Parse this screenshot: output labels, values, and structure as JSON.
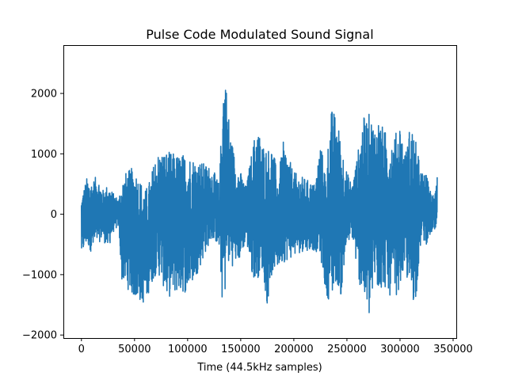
{
  "chart_data": {
    "type": "line",
    "title": "Pulse Code Modulated Sound Signal",
    "xlabel": "Time (44.5kHz samples)",
    "ylabel": "",
    "xlim": [
      -17000,
      353000
    ],
    "ylim": [
      -2050,
      2800
    ],
    "xticks": [
      0,
      50000,
      100000,
      150000,
      200000,
      250000,
      300000,
      350000
    ],
    "xtick_labels": [
      "0",
      "50000",
      "100000",
      "150000",
      "200000",
      "250000",
      "300000",
      "350000"
    ],
    "yticks": [
      -2000,
      -1000,
      0,
      1000,
      2000
    ],
    "ytick_labels": [
      "−2000",
      "−1000",
      "0",
      "1000",
      "2000"
    ],
    "grid": false,
    "legend": "none",
    "series": [
      {
        "color": "#1f77b4",
        "envelope_x": [
          0,
          5000,
          10000,
          15000,
          20000,
          25000,
          30000,
          35000,
          38000,
          42000,
          50000,
          60000,
          65000,
          70000,
          75000,
          80000,
          90000,
          100000,
          110000,
          120000,
          125000,
          130000,
          133000,
          135000,
          137000,
          140000,
          145000,
          150000,
          155000,
          160000,
          165000,
          170000,
          175000,
          180000,
          185000,
          190000,
          200000,
          210000,
          220000,
          225000,
          230000,
          235000,
          240000,
          245000,
          250000,
          255000,
          260000,
          265000,
          270000,
          272000,
          275000,
          280000,
          285000,
          290000,
          295000,
          300000,
          305000,
          310000,
          315000,
          320000,
          325000,
          330000,
          335000
        ],
        "envelope_max": [
          300,
          600,
          550,
          650,
          400,
          500,
          350,
          250,
          600,
          700,
          800,
          400,
          600,
          1000,
          1050,
          1050,
          1000,
          1000,
          900,
          800,
          700,
          500,
          2200,
          2500,
          2000,
          1400,
          900,
          700,
          450,
          1000,
          1500,
          1200,
          1100,
          1150,
          600,
          1200,
          700,
          600,
          500,
          1200,
          700,
          1750,
          1650,
          1200,
          700,
          500,
          1000,
          1600,
          1650,
          1700,
          1500,
          1600,
          1400,
          1300,
          1300,
          1550,
          1000,
          1550,
          1200,
          700,
          650,
          300,
          700
        ],
        "envelope_min": [
          -700,
          -500,
          -650,
          -500,
          -400,
          -600,
          -300,
          -200,
          -1100,
          -1200,
          -1400,
          -1500,
          -1200,
          -1000,
          -1050,
          -1400,
          -1300,
          -1300,
          -950,
          -500,
          -400,
          -600,
          -1600,
          -1400,
          -800,
          -900,
          -800,
          -750,
          -400,
          -1000,
          -1100,
          -900,
          -1500,
          -950,
          -900,
          -800,
          -700,
          -600,
          -600,
          -700,
          -1300,
          -1500,
          -1100,
          -1400,
          -500,
          -400,
          -1000,
          -1400,
          -1750,
          -1800,
          -1200,
          -1300,
          -1200,
          -1350,
          -1400,
          -1200,
          -900,
          -1500,
          -1400,
          -400,
          -500,
          -300,
          -400
        ]
      }
    ]
  }
}
